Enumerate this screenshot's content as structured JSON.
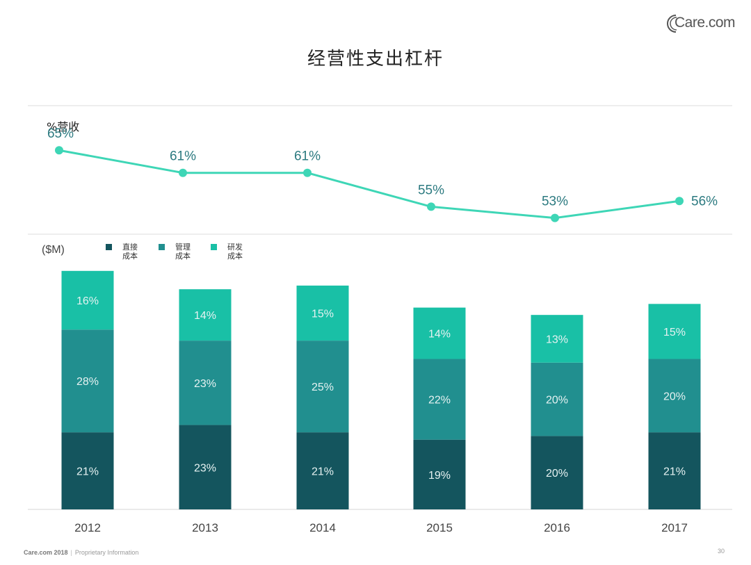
{
  "logo": {
    "text": "Care.com",
    "icon": "care-com-c-logo-icon"
  },
  "title": "经营性支出杠杆",
  "footer": {
    "brand": "Care.com 2018",
    "separator": "|",
    "note": "Proprietary Information",
    "page": "30"
  },
  "colors": {
    "direct": "#14555e",
    "admin": "#218f8f",
    "rnd": "#19c0a6",
    "line": "#3ed6b6",
    "line_label": "#2c7a80",
    "bar_label": "#e6f2f2",
    "axis_label": "#444444",
    "grid": "#dddddd"
  },
  "chart_data": [
    {
      "type": "line",
      "ylabel": "%营收",
      "categories": [
        "2012",
        "2013",
        "2014",
        "2015",
        "2016",
        "2017"
      ],
      "values": [
        65,
        61,
        61,
        55,
        53,
        56
      ],
      "value_labels": [
        "65%",
        "61%",
        "61%",
        "55%",
        "53%",
        "56%"
      ],
      "ylim": [
        50,
        67
      ]
    },
    {
      "type": "bar",
      "stacked": true,
      "ylabel": "($M)",
      "xlabel": "",
      "categories": [
        "2012",
        "2013",
        "2014",
        "2015",
        "2016",
        "2017"
      ],
      "series": [
        {
          "key": "direct",
          "name": "直接\n成本",
          "values": [
            21,
            23,
            21,
            19,
            20,
            21
          ],
          "labels": [
            "21%",
            "23%",
            "21%",
            "19%",
            "20%",
            "21%"
          ]
        },
        {
          "key": "admin",
          "name": "管理\n成本",
          "values": [
            28,
            23,
            25,
            22,
            20,
            20
          ],
          "labels": [
            "28%",
            "23%",
            "25%",
            "22%",
            "20%",
            "20%"
          ]
        },
        {
          "key": "rnd",
          "name": "研发\n成本",
          "values": [
            16,
            14,
            15,
            14,
            13,
            15
          ],
          "labels": [
            "16%",
            "14%",
            "15%",
            "14%",
            "13%",
            "15%"
          ]
        }
      ],
      "legend_position": "top-left"
    }
  ]
}
